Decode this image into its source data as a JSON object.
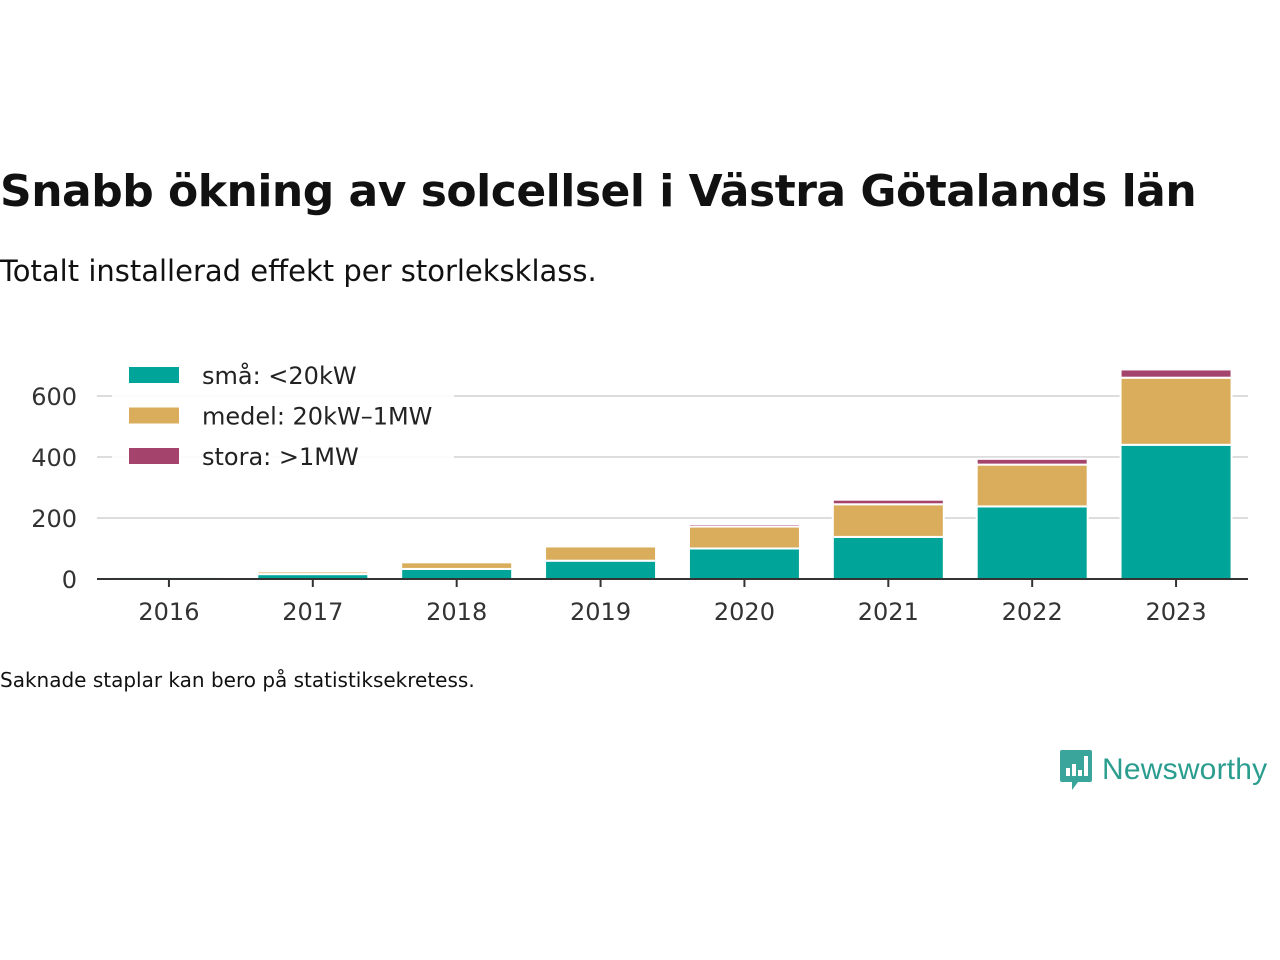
{
  "title": "Snabb ökning av solcellsel i Västra Götalands län",
  "subtitle": "Totalt installerad effekt per storleksklass.",
  "note": "Saknade staplar kan bero på statistiksekretess.",
  "brand": {
    "name": "Newsworthy",
    "icon": "newsworthy-logo-icon",
    "color": "#2a9d8f"
  },
  "chart_data": {
    "type": "bar",
    "stacked": true,
    "categories": [
      "2016",
      "2017",
      "2018",
      "2019",
      "2020",
      "2021",
      "2022",
      "2023"
    ],
    "series": [
      {
        "name": "små: <20kW",
        "color": "#00a499",
        "values": [
          7,
          16,
          33,
          60,
          100,
          138,
          238,
          440
        ]
      },
      {
        "name": "medel: 20kW–1MW",
        "color": "#d9ad5b",
        "values": [
          3,
          9,
          22,
          47,
          72,
          107,
          137,
          220
        ]
      },
      {
        "name": "stora: >1MW",
        "color": "#a4436b",
        "values": [
          0,
          2,
          3,
          4,
          8,
          15,
          19,
          27
        ]
      }
    ],
    "yticks": [
      0,
      200,
      400,
      600
    ],
    "ylim": [
      0,
      700
    ],
    "grid": true,
    "legend": "top-left"
  }
}
